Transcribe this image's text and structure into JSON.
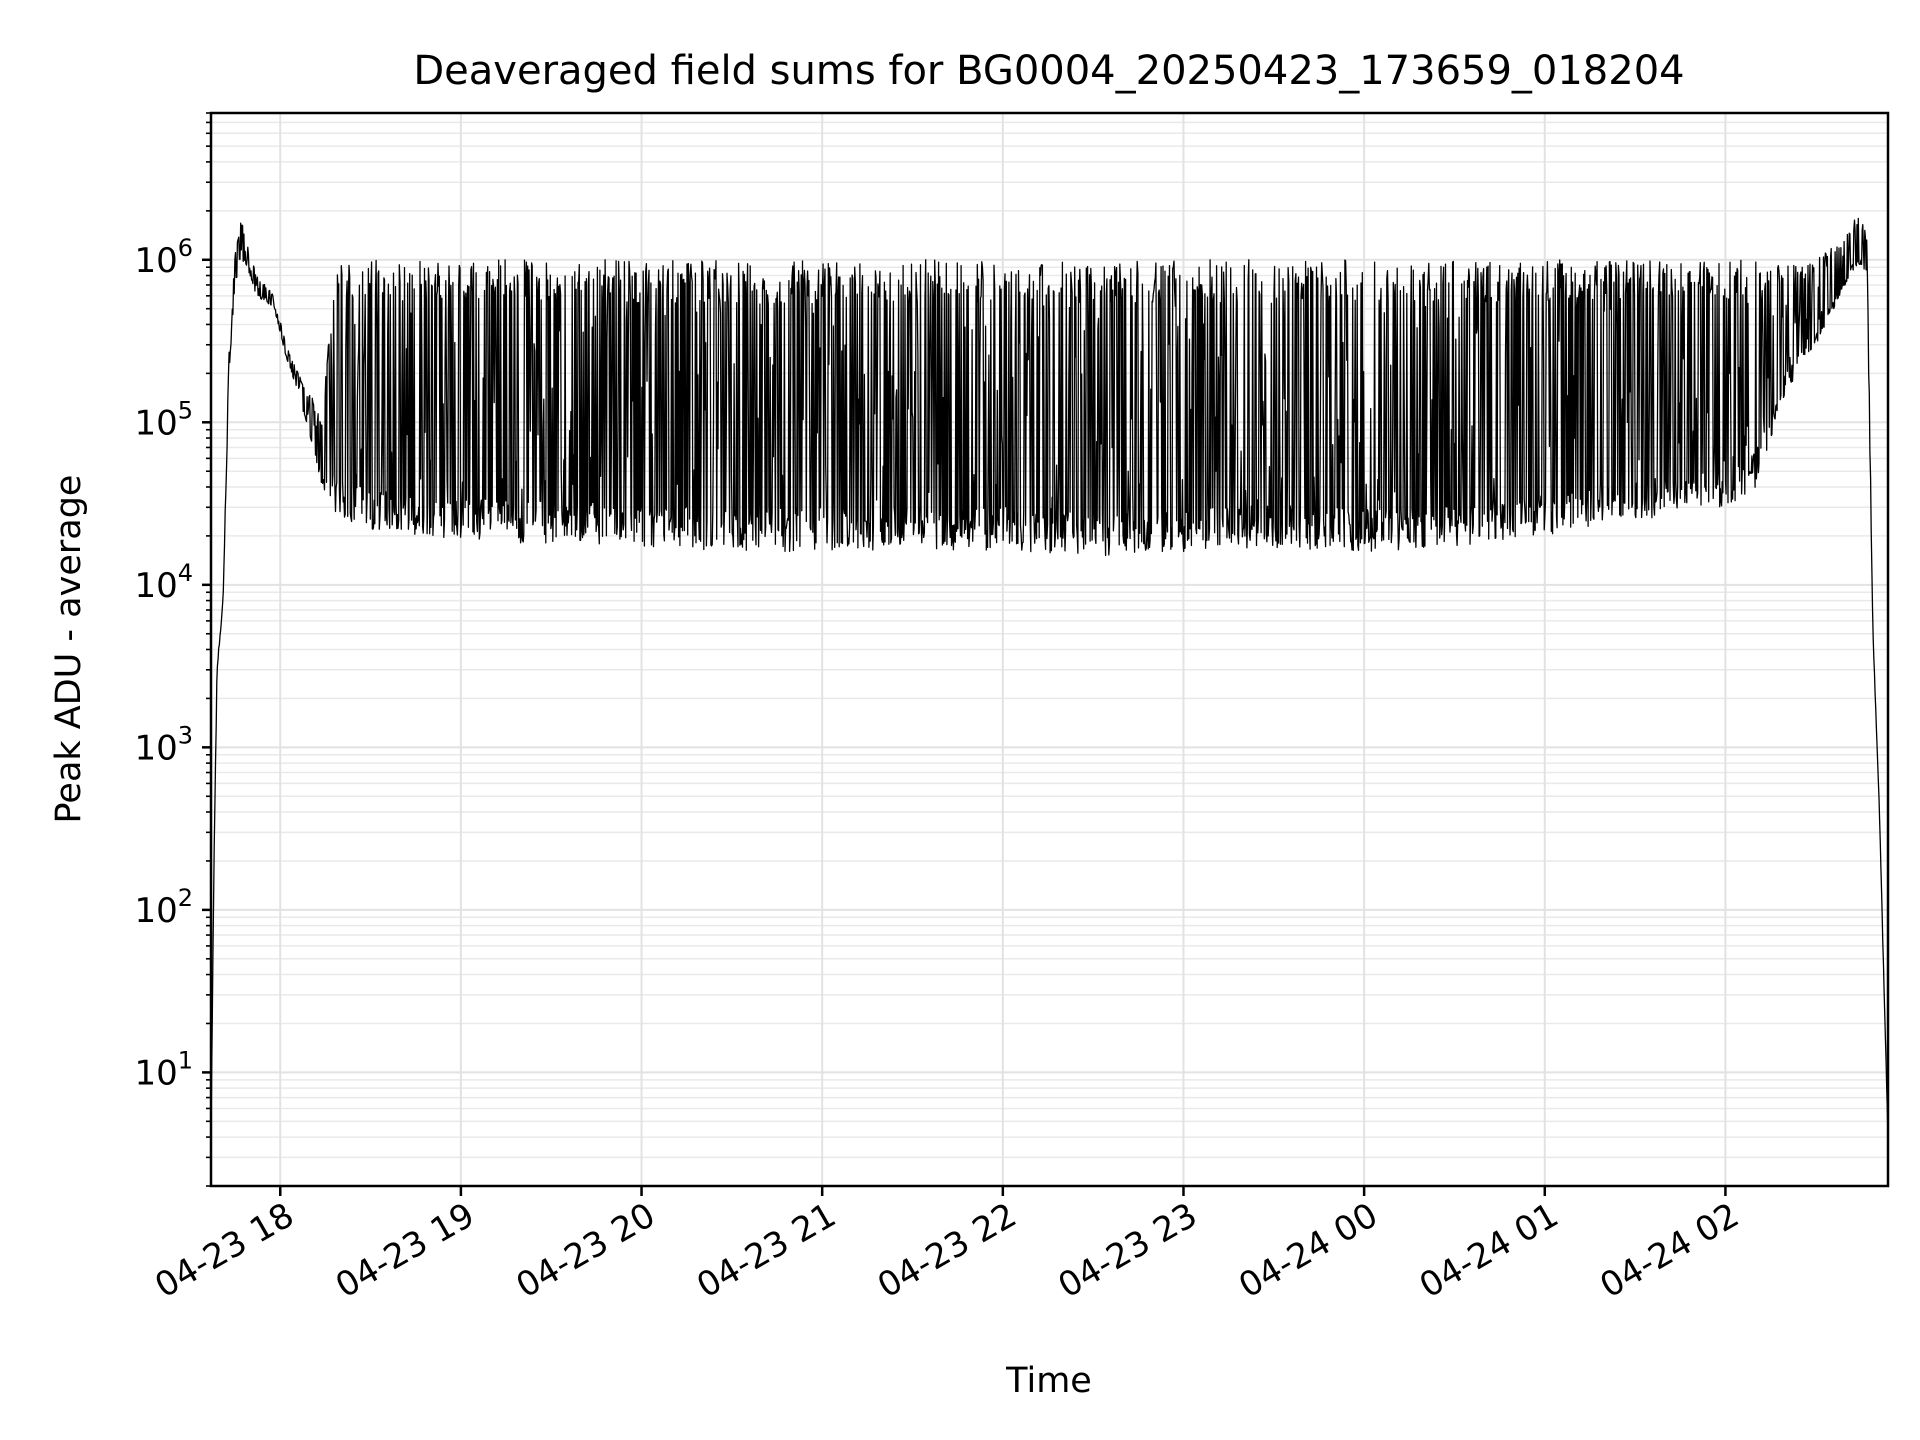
{
  "chart_data": {
    "type": "line",
    "title": "Deaveraged field sums for BG0004_20250423_173659_018204",
    "xlabel": "Time",
    "ylabel": "Peak ADU - average",
    "yscale": "log",
    "ylim": [
      2,
      8000000
    ],
    "xlim": [
      "2025-04-23 17:37",
      "2025-04-24 02:54"
    ],
    "grid": true,
    "line_color": "#000000",
    "grid_color": "#e2e2e2",
    "x_ticks": [
      {
        "label": "04-23 18",
        "t": "2025-04-23 18:00"
      },
      {
        "label": "04-23 19",
        "t": "2025-04-23 19:00"
      },
      {
        "label": "04-23 20",
        "t": "2025-04-23 20:00"
      },
      {
        "label": "04-23 21",
        "t": "2025-04-23 21:00"
      },
      {
        "label": "04-23 22",
        "t": "2025-04-23 22:00"
      },
      {
        "label": "04-23 23",
        "t": "2025-04-23 23:00"
      },
      {
        "label": "04-24 00",
        "t": "2025-04-24 00:00"
      },
      {
        "label": "04-24 01",
        "t": "2025-04-24 01:00"
      },
      {
        "label": "04-24 02",
        "t": "2025-04-24 02:00"
      }
    ],
    "y_ticks": [
      {
        "base": "10",
        "exp": "1",
        "value": 10
      },
      {
        "base": "10",
        "exp": "2",
        "value": 100
      },
      {
        "base": "10",
        "exp": "3",
        "value": 1000
      },
      {
        "base": "10",
        "exp": "4",
        "value": 10000
      },
      {
        "base": "10",
        "exp": "5",
        "value": 100000
      },
      {
        "base": "10",
        "exp": "6",
        "value": 1000000
      }
    ],
    "series": [
      {
        "x": [
          "2025-04-23 17:37",
          "2025-04-23 17:38",
          "2025-04-23 17:39",
          "2025-04-23 17:41",
          "2025-04-23 17:43",
          "2025-04-23 17:45",
          "2025-04-23 17:47",
          "2025-04-23 17:49",
          "2025-04-23 17:52",
          "2025-04-23 17:55",
          "2025-04-23 17:58",
          "2025-04-23 18:02",
          "2025-04-23 18:06",
          "2025-04-23 18:10",
          "2025-04-23 18:14",
          "2025-04-23 18:18",
          "2025-04-23 18:21",
          "2025-04-23 18:24",
          "2025-04-23 18:30",
          "2025-04-23 18:40",
          "2025-04-23 18:50",
          "2025-04-23 19:00",
          "2025-04-23 19:10",
          "2025-04-23 19:20",
          "2025-04-23 19:30",
          "2025-04-23 20:00",
          "2025-04-23 20:30",
          "2025-04-23 21:00",
          "2025-04-23 21:30",
          "2025-04-23 22:00",
          "2025-04-23 22:30",
          "2025-04-23 23:00",
          "2025-04-23 23:30",
          "2025-04-24 00:00",
          "2025-04-24 00:30",
          "2025-04-24 01:00",
          "2025-04-24 01:30",
          "2025-04-24 02:00",
          "2025-04-24 02:10",
          "2025-04-24 02:20",
          "2025-04-24 02:30",
          "2025-04-24 02:40",
          "2025-04-24 02:43",
          "2025-04-24 02:45",
          "2025-04-24 02:47",
          "2025-04-24 02:49",
          "2025-04-24 02:51",
          "2025-04-24 02:53",
          "2025-04-24 02:54"
        ],
        "low": [
          4,
          200,
          3000,
          8000,
          200000,
          700000,
          1000000,
          900000,
          600000,
          550000,
          500000,
          250000,
          150000,
          80000,
          40000,
          28000,
          25000,
          24000,
          22000,
          20000,
          20000,
          19000,
          19000,
          18000,
          18000,
          17000,
          16000,
          16000,
          16000,
          16000,
          15000,
          16000,
          17000,
          16000,
          17000,
          20000,
          25000,
          30000,
          40000,
          150000,
          300000,
          700000,
          900000,
          900000,
          800000,
          5000,
          500,
          20,
          4
        ],
        "high": [
          4,
          200,
          3000,
          8000,
          300000,
          1100000,
          1800000,
          1300000,
          800000,
          700000,
          600000,
          300000,
          200000,
          150000,
          100000,
          1000000,
          1000000,
          1000000,
          1000000,
          1000000,
          1000000,
          1000000,
          1000000,
          1000000,
          1000000,
          1000000,
          1000000,
          1000000,
          1000000,
          1000000,
          1000000,
          1000000,
          1000000,
          1000000,
          1000000,
          1000000,
          1000000,
          1000000,
          1000000,
          1000000,
          1000000,
          1400000,
          1800000,
          1800000,
          1400000,
          5000,
          500,
          20,
          4
        ]
      }
    ]
  }
}
